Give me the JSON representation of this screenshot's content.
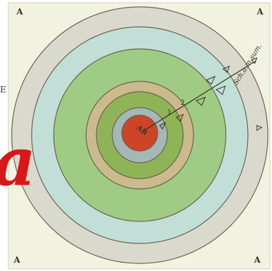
{
  "corners": {
    "top_left": "A",
    "top_right": "A",
    "bottom_left": "A",
    "bottom_right": "A"
  },
  "center_label": "AB",
  "ray_label": "Sch.a.m.sum.",
  "left_edge_letter": "E",
  "big_red_text": "a",
  "ring_numbers": [
    "1",
    "2"
  ],
  "colors": {
    "paper": "#f1f3e0",
    "ring_outer_grey": "#dad9cd",
    "ring_light_blue": "#c1dfd7",
    "ring_green": "#9fcb85",
    "ring_tan": "#cbbb8c",
    "ring_mid_green": "#8fb457",
    "ring_blue_grey": "#a3b8b7",
    "center_red": "#cd4427",
    "big_text_red": "#d81818"
  }
}
